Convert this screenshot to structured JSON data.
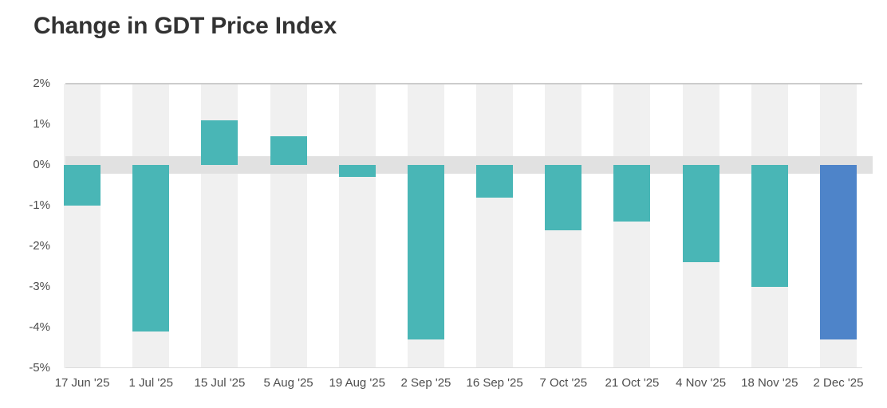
{
  "header": {
    "title": "Change in GDT Price Index"
  },
  "chart_data": {
    "type": "bar",
    "title": "Change in GDT Price Index",
    "unit": "%",
    "categories": [
      "17 Jun '25",
      "1 Jul '25",
      "15 Jul '25",
      "5 Aug '25",
      "19 Aug '25",
      "2 Sep '25",
      "16 Sep '25",
      "7 Oct '25",
      "21 Oct '25",
      "4 Nov '25",
      "18 Nov '25",
      "2 Dec '25"
    ],
    "values": [
      -1.0,
      -4.1,
      1.1,
      0.7,
      -0.3,
      -4.3,
      -0.8,
      -1.6,
      -1.4,
      -2.4,
      -3.0,
      -4.3
    ],
    "highlight_index": 11,
    "ylim": [
      -5,
      2
    ],
    "y_ticks": [
      "2%",
      "1%",
      "0%",
      "-1%",
      "-2%",
      "-3%",
      "-4%",
      "-5%"
    ],
    "xlabel": "",
    "ylabel": "",
    "legend": "none",
    "grid": "alternating-column-bands-with-zero-band",
    "colors": {
      "bar": "#49b6b6",
      "highlight_bar": "#4e84c9",
      "column_band": "#f0f0f0",
      "zero_band": "#e1e1e1",
      "top_border": "#cccccc",
      "axis_text": "#4d4d4d",
      "title_text": "#333333"
    }
  }
}
